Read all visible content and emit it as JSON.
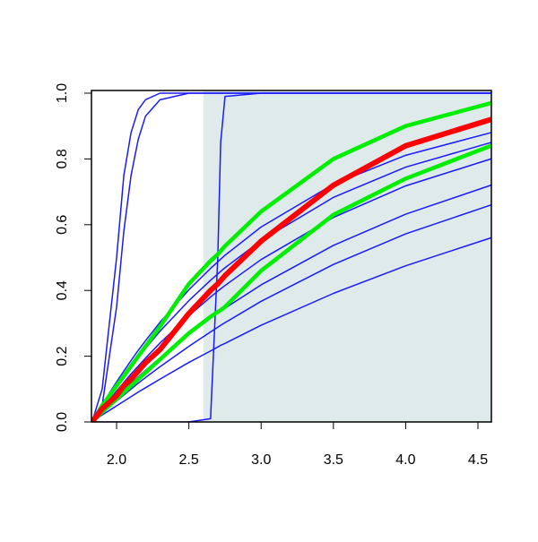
{
  "chart_data": {
    "type": "line",
    "x": [
      1.83,
      1.9,
      2.0,
      2.05,
      2.1,
      2.15,
      2.2,
      2.3,
      2.5,
      2.65,
      2.7,
      2.72,
      2.75,
      3.0,
      3.5,
      4.0,
      4.59
    ],
    "series": [
      {
        "color": "#1a1aff",
        "width": 1.5,
        "values": [
          0,
          0.1,
          0.5,
          0.75,
          0.88,
          0.95,
          0.98,
          1,
          1,
          1,
          1,
          1,
          1,
          1,
          1,
          1,
          1
        ]
      },
      {
        "color": "#1a1aff",
        "width": 1.5,
        "values": [
          0,
          0.05,
          0.35,
          0.58,
          0.75,
          0.86,
          0.93,
          0.98,
          1,
          1,
          1,
          1,
          1,
          1,
          1,
          1,
          1
        ]
      },
      {
        "color": "#1a1aff",
        "width": 1.5,
        "values": [
          0,
          0,
          0,
          0,
          0,
          0,
          0,
          0,
          0,
          0.01,
          0.5,
          0.85,
          0.99,
          1,
          1,
          1,
          1
        ]
      },
      {
        "color": "#1a1aff",
        "width": 1.5,
        "values": [
          0,
          0.053,
          0.122,
          0.155,
          0.187,
          0.218,
          0.247,
          0.303,
          0.402,
          0.467,
          0.487,
          0.495,
          0.507,
          0.593,
          0.723,
          0.811,
          0.88
        ]
      },
      {
        "color": "#1a1aff",
        "width": 1.5,
        "values": [
          0,
          0.047,
          0.11,
          0.14,
          0.169,
          0.197,
          0.224,
          0.276,
          0.369,
          0.431,
          0.45,
          0.458,
          0.469,
          0.552,
          0.683,
          0.775,
          0.85
        ]
      },
      {
        "color": "#1a1aff",
        "width": 1.5,
        "values": [
          0,
          0.04,
          0.094,
          0.12,
          0.146,
          0.17,
          0.194,
          0.24,
          0.323,
          0.38,
          0.398,
          0.405,
          0.415,
          0.494,
          0.622,
          0.718,
          0.8
        ]
      },
      {
        "color": "#1a1aff",
        "width": 1.5,
        "values": [
          0,
          0.032,
          0.075,
          0.096,
          0.117,
          0.137,
          0.157,
          0.195,
          0.266,
          0.315,
          0.331,
          0.337,
          0.346,
          0.417,
          0.537,
          0.632,
          0.72
        ]
      },
      {
        "color": "#1a1aff",
        "width": 1.5,
        "values": [
          0,
          0.027,
          0.064,
          0.082,
          0.1,
          0.118,
          0.135,
          0.168,
          0.23,
          0.274,
          0.288,
          0.294,
          0.302,
          0.367,
          0.479,
          0.572,
          0.66
        ]
      },
      {
        "color": "#1a1aff",
        "width": 1.5,
        "values": [
          0,
          0.021,
          0.049,
          0.063,
          0.077,
          0.091,
          0.104,
          0.13,
          0.181,
          0.216,
          0.228,
          0.233,
          0.239,
          0.294,
          0.391,
          0.475,
          0.56
        ]
      },
      {
        "color": "#00ee00",
        "width": 4.5,
        "values": [
          0,
          0.05,
          0.11,
          0.14,
          0.17,
          0.2,
          0.23,
          0.29,
          0.42,
          0.49,
          0.51,
          0.52,
          0.535,
          0.64,
          0.8,
          0.9,
          0.97
        ]
      },
      {
        "color": "#00ee00",
        "width": 4.5,
        "values": [
          0,
          0.03,
          0.07,
          0.09,
          0.11,
          0.13,
          0.15,
          0.19,
          0.27,
          0.32,
          0.335,
          0.34,
          0.35,
          0.46,
          0.63,
          0.74,
          0.84
        ]
      },
      {
        "color": "#ff0000",
        "width": 6,
        "values": [
          0,
          0.04,
          0.08,
          0.11,
          0.13,
          0.155,
          0.18,
          0.22,
          0.33,
          0.4,
          0.42,
          0.43,
          0.445,
          0.55,
          0.72,
          0.84,
          0.92
        ]
      }
    ],
    "shade": {
      "xmin": 2.6,
      "color": "#dfeaea"
    },
    "xlim": [
      1.826,
      4.593
    ],
    "ylim": [
      0,
      1
    ],
    "xticks": [
      {
        "value": 2.0,
        "label": "2.0"
      },
      {
        "value": 2.5,
        "label": "2.5"
      },
      {
        "value": 3.0,
        "label": "3.0"
      },
      {
        "value": 3.5,
        "label": "3.5"
      },
      {
        "value": 4.0,
        "label": "4.0"
      },
      {
        "value": 4.5,
        "label": "4.5"
      }
    ],
    "yticks": [
      {
        "value": 0.0,
        "label": "0.0"
      },
      {
        "value": 0.2,
        "label": "0.2"
      },
      {
        "value": 0.4,
        "label": "0.4"
      },
      {
        "value": 0.6,
        "label": "0.6"
      },
      {
        "value": 0.8,
        "label": "0.8"
      },
      {
        "value": 1.0,
        "label": "1.0"
      }
    ]
  }
}
